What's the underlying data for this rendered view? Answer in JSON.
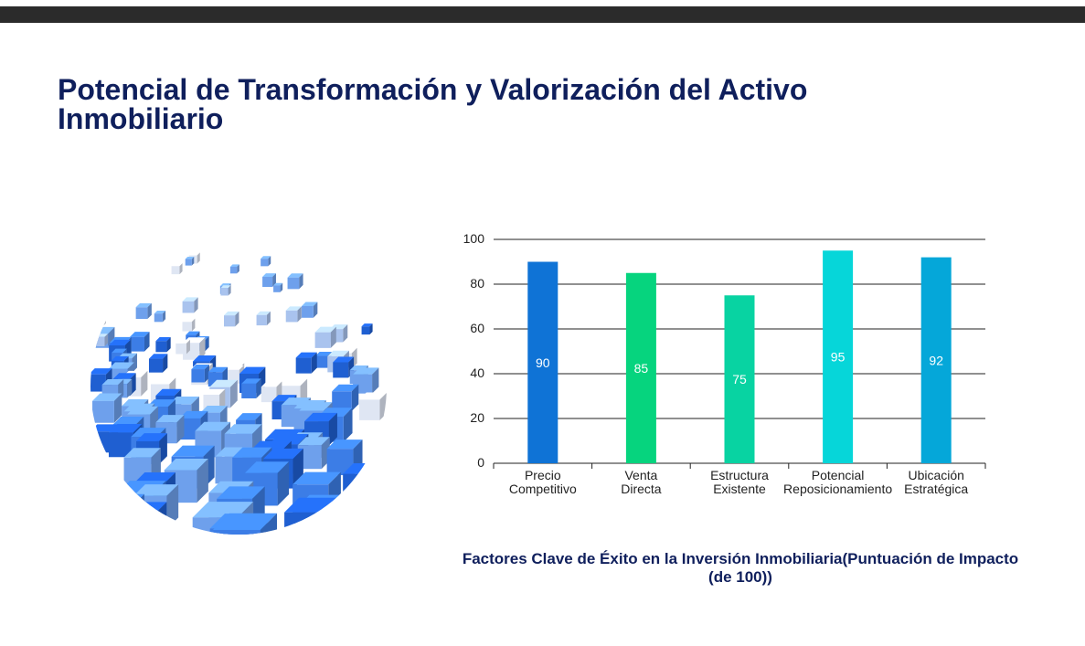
{
  "slide": {
    "title": "Potencial de Transformación y Valorización del Activo Inmobiliario"
  },
  "illustration": {
    "icon": "cube-sphere-icon",
    "colors": [
      "#1f5fd1",
      "#3c7de6",
      "#6ea0ec",
      "#a9c3ee",
      "#dfe6f3"
    ]
  },
  "chart_data": {
    "type": "bar",
    "title": "Factores Clave de Éxito en la Inversión Inmobiliaria(Puntuación de Impacto (de 100))",
    "categories": [
      [
        "Precio",
        "Competitivo"
      ],
      [
        "Venta",
        "Directa"
      ],
      [
        "Estructura",
        "Existente"
      ],
      [
        "Potencial",
        "Reposicionamiento"
      ],
      [
        "Ubicación",
        "Estratégica"
      ]
    ],
    "values": [
      90,
      85,
      75,
      95,
      92
    ],
    "data_labels": [
      "90",
      "85",
      "75",
      "95",
      "92"
    ],
    "colors": [
      "#0f73d6",
      "#06d47e",
      "#08d3a2",
      "#06d6d9",
      "#05a7d9"
    ],
    "ylim": [
      0,
      100
    ],
    "yticks": [
      "0",
      "20",
      "40",
      "60",
      "80",
      "100"
    ],
    "grid": true,
    "legend": "none"
  }
}
